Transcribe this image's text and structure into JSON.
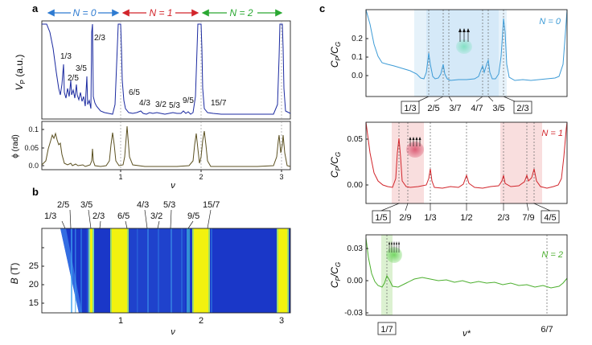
{
  "panels": {
    "a": {
      "label": "a",
      "header": [
        {
          "text": "N = 0",
          "color": "#2e7bd1"
        },
        {
          "text": "N = 1",
          "color": "#d2252b"
        },
        {
          "text": "N = 2",
          "color": "#2aa832"
        }
      ],
      "top_ylabel": "V",
      "top_ylabel_sub": "P",
      "top_ylabel_unit": "(a.u.)",
      "bottom_ylabel": "ϕ (rad)",
      "xlabel": "ν",
      "fraction_labels": [
        "1/3",
        "2/5",
        "3/5",
        "2/3",
        "6/5",
        "4/3",
        "3/2",
        "5/3",
        "9/5",
        "15/7"
      ]
    },
    "b": {
      "label": "b",
      "ylabel_B": "B",
      "ylabel_unit": "(T)",
      "xlabel": "ν",
      "top_labels": [
        "1/3",
        "2/5",
        "3/5",
        "2/3",
        "6/5",
        "4/3",
        "3/2",
        "5/3",
        "9/5",
        "15/7"
      ]
    },
    "c": {
      "label": "c",
      "ylabel": "C",
      "ylabel_subP": "P",
      "ylabel_subG": "G",
      "xlabel": "ν*",
      "n0": {
        "title": "N = 0",
        "color": "#3d9bd6",
        "labels": [
          "1/3",
          "2/5",
          "3/7",
          "4/7",
          "3/5",
          "2/3"
        ],
        "boxed": [
          "1/3",
          "2/3"
        ]
      },
      "n1": {
        "title": "N = 1",
        "color": "#d2252b",
        "labels": [
          "1/5",
          "2/9",
          "1/3",
          "1/2",
          "2/3",
          "7/9",
          "4/5"
        ],
        "boxed": [
          "1/5",
          "4/5"
        ]
      },
      "n2": {
        "title": "N = 2",
        "color": "#4caf2e",
        "labels": [
          "1/7",
          "6/7"
        ],
        "boxed": [
          "1/7"
        ]
      }
    }
  },
  "colors": {
    "vp_line": "#1b2aa0",
    "phi_line": "#5b5020",
    "heat_bg": "#1a37c8",
    "heat_peak": "#f2f20f"
  },
  "chart_data": [
    {
      "id": "a-top",
      "type": "line",
      "xlabel": "ν",
      "ylabel": "V_P (a.u.)",
      "xlim": [
        0.07,
        3.15
      ],
      "x_ticks": [
        1,
        2,
        3
      ],
      "peaks": [
        {
          "x": 0.27,
          "height": 0.78
        },
        {
          "x": 0.64,
          "height": 0.95
        },
        {
          "x": 0.99,
          "height": 1.0
        },
        {
          "x": 1.0,
          "height": 1.0
        },
        {
          "x": 1.95,
          "height": 1.0
        },
        {
          "x": 2.0,
          "height": 1.0
        },
        {
          "x": 2.95,
          "height": 1.0
        },
        {
          "x": 3.0,
          "height": 1.0
        }
      ]
    },
    {
      "id": "a-bottom",
      "type": "line",
      "xlabel": "ν",
      "ylabel": "ϕ (rad)",
      "xlim": [
        0.07,
        3.15
      ],
      "ylim": [
        0.0,
        0.11
      ],
      "y_ticks": [
        0.0,
        0.05,
        0.1
      ],
      "x_ticks": [
        1,
        2,
        3
      ],
      "peaks": [
        {
          "x": 0.18,
          "value": 0.07
        },
        {
          "x": 0.22,
          "value": 0.065
        },
        {
          "x": 0.29,
          "value": 0.05
        },
        {
          "x": 0.35,
          "value": 0.015
        },
        {
          "x": 0.41,
          "value": 0.015
        },
        {
          "x": 0.52,
          "value": 0.012
        },
        {
          "x": 0.68,
          "value": 0.045
        },
        {
          "x": 0.92,
          "value": 0.08
        },
        {
          "x": 1.09,
          "value": 0.11
        },
        {
          "x": 1.95,
          "value": 0.08
        },
        {
          "x": 2.06,
          "value": 0.095
        },
        {
          "x": 2.97,
          "value": 0.06
        },
        {
          "x": 3.05,
          "value": 0.06
        }
      ]
    },
    {
      "id": "b",
      "type": "heatmap",
      "xlabel": "ν",
      "ylabel": "B (T)",
      "xlim": [
        0.07,
        3.15
      ],
      "ylim": [
        11,
        30
      ],
      "y_ticks": [
        15,
        20,
        25
      ],
      "x_ticks": [
        1,
        2,
        3
      ],
      "bright_bands": [
        {
          "x0": 0.64,
          "x1": 0.68
        },
        {
          "x0": 0.92,
          "x1": 1.08
        },
        {
          "x0": 1.92,
          "x1": 2.08
        },
        {
          "x0": 2.95,
          "x1": 3.08
        }
      ],
      "faint_lines": [
        0.34,
        0.4,
        0.55,
        1.2,
        1.33,
        1.5,
        1.67,
        1.82,
        2.14
      ]
    },
    {
      "id": "c-N0",
      "type": "line",
      "title": "N = 0",
      "xlabel": "ν*",
      "ylabel": "C_P/C_G",
      "ylim": [
        -0.05,
        0.35
      ],
      "y_ticks": [
        0.0,
        0.1,
        0.2
      ],
      "peaks": [
        {
          "x": 0.4,
          "value": 0.14
        },
        {
          "x": 0.43,
          "value": 0.06
        },
        {
          "x": 0.57,
          "value": 0.04
        },
        {
          "x": 0.6,
          "value": 0.1
        },
        {
          "x": 0.67,
          "value": 0.27
        }
      ]
    },
    {
      "id": "c-N1",
      "type": "line",
      "title": "N = 1",
      "xlabel": "ν*",
      "ylabel": "C_P/C_G",
      "ylim": [
        -0.03,
        0.07
      ],
      "y_ticks": [
        0.0,
        0.05
      ],
      "peaks": [
        {
          "x": 0.2,
          "value": 0.052
        },
        {
          "x": 0.333,
          "value": 0.01
        },
        {
          "x": 0.5,
          "value": 0.01
        },
        {
          "x": 0.667,
          "value": 0.005
        },
        {
          "x": 0.78,
          "value": 0.015
        }
      ]
    },
    {
      "id": "c-N2",
      "type": "line",
      "title": "N = 2",
      "xlabel": "ν*",
      "ylabel": "C_P/C_G",
      "ylim": [
        -0.035,
        0.04
      ],
      "y_ticks": [
        -0.03,
        0.0,
        0.03
      ],
      "peaks": [
        {
          "x": 0.143,
          "value": 0.008
        }
      ]
    }
  ]
}
